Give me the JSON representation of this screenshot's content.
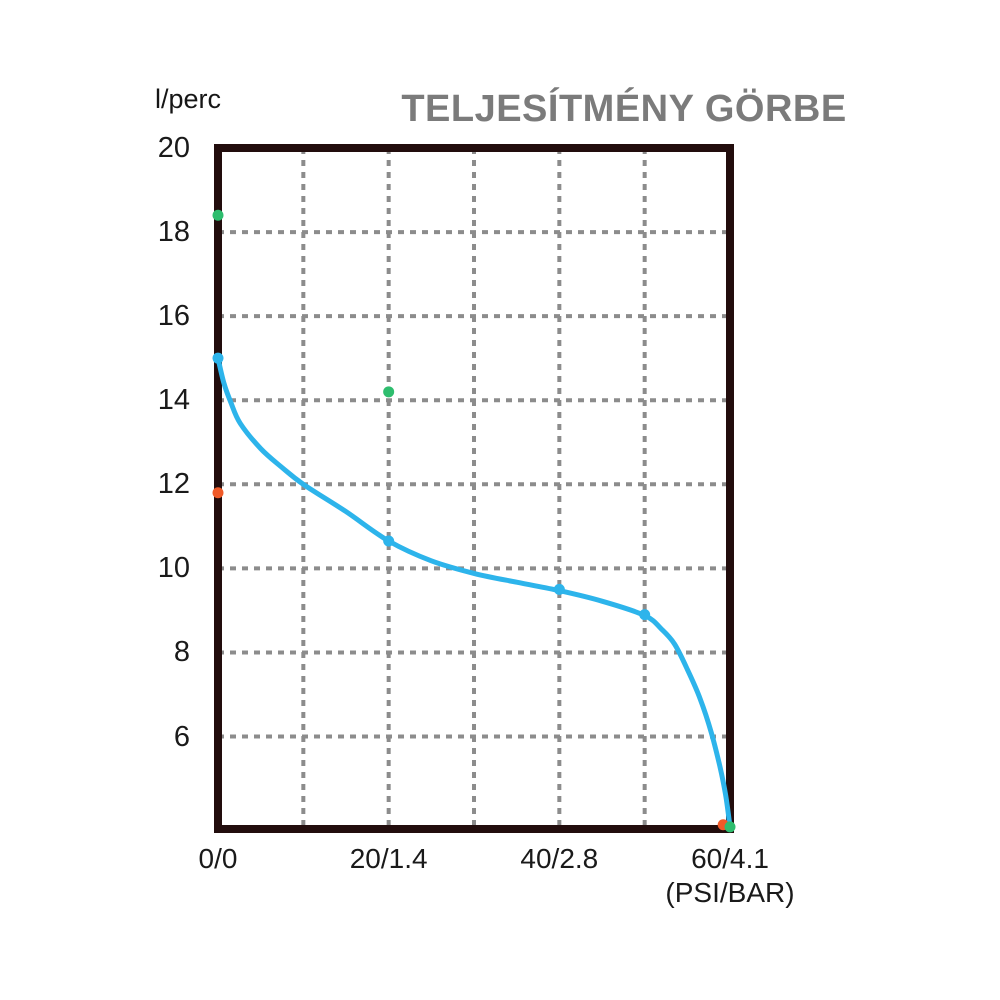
{
  "chart": {
    "title": "TELJESÍTMÉNY GÖRBE",
    "y_axis_label": "l/perc",
    "x_axis_unit": "(PSI/BAR)"
  },
  "colors": {
    "curve": "#2db4eb",
    "green_marker": "#2ebd6e",
    "orange_marker": "#f05a28",
    "grid": "#8c8c8c",
    "border": "#220d0d",
    "text": "#1a1a1a",
    "title": "#7b7b7b"
  },
  "chart_data": {
    "type": "line",
    "title": "TELJESÍTMÉNY GÖRBE",
    "ylabel": "l/perc",
    "xlabel": "(PSI/BAR)",
    "xlim": [
      0,
      60
    ],
    "ylim": [
      3.8,
      20
    ],
    "grid": "dashed",
    "legend": "none",
    "y_ticks": [
      20,
      18,
      16,
      14,
      12,
      10,
      8,
      6
    ],
    "x_ticks": [
      {
        "value": 0,
        "label": "0/0"
      },
      {
        "value": 20,
        "label": "20/1.4"
      },
      {
        "value": 40,
        "label": "40/2.8"
      },
      {
        "value": 60,
        "label": "60/4.1"
      }
    ],
    "grid_x_lines": [
      10,
      20,
      30,
      40,
      50
    ],
    "grid_y_lines": [
      18,
      16,
      14,
      12,
      10,
      8,
      6
    ],
    "series": [
      {
        "name": "flow-vs-pressure-curve",
        "color_key": "curve",
        "points": [
          [
            0,
            15
          ],
          [
            0.7,
            14.4
          ],
          [
            1.5,
            13.95
          ],
          [
            2.6,
            13.45
          ],
          [
            5,
            12.85
          ],
          [
            7.5,
            12.4
          ],
          [
            10,
            12.0
          ],
          [
            15,
            11.35
          ],
          [
            20,
            10.65
          ],
          [
            25,
            10.18
          ],
          [
            30,
            9.88
          ],
          [
            35,
            9.67
          ],
          [
            40,
            9.47
          ],
          [
            45,
            9.22
          ],
          [
            50,
            8.88
          ],
          [
            52,
            8.55
          ],
          [
            53.5,
            8.2
          ],
          [
            55,
            7.6
          ],
          [
            56.5,
            6.9
          ],
          [
            57.8,
            6.1
          ],
          [
            58.8,
            5.3
          ],
          [
            59.5,
            4.6
          ],
          [
            60,
            3.85
          ]
        ],
        "markers": [
          [
            0,
            15
          ],
          [
            20,
            10.65
          ],
          [
            40,
            9.5
          ],
          [
            50,
            8.9
          ]
        ]
      }
    ],
    "scatter_points": [
      {
        "name": "orange-points",
        "color_key": "orange_marker",
        "points": [
          [
            0,
            11.8
          ],
          [
            59.2,
            3.9
          ]
        ]
      },
      {
        "name": "green-points",
        "color_key": "green_marker",
        "points": [
          [
            0,
            18.4
          ],
          [
            20,
            14.2
          ],
          [
            60,
            3.85
          ]
        ]
      }
    ]
  }
}
